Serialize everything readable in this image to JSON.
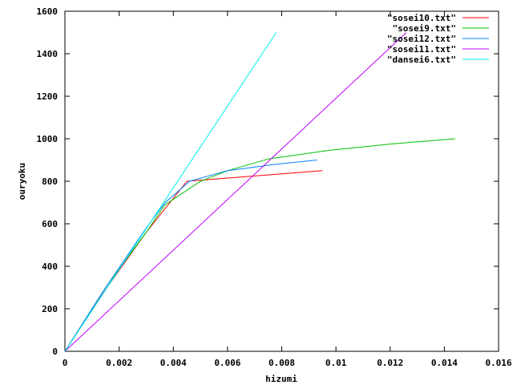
{
  "chart_data": {
    "type": "line",
    "title": "",
    "xlabel": "hizumi",
    "ylabel": "ouryoku",
    "xlim": [
      0,
      0.016
    ],
    "ylim": [
      0,
      1600
    ],
    "x_ticks": [
      0,
      0.002,
      0.004,
      0.006,
      0.008,
      0.01,
      0.012,
      0.014,
      0.016
    ],
    "x_tick_labels": [
      "0",
      "0.002",
      "0.004",
      "0.006",
      "0.008",
      "0.01",
      "0.012",
      "0.014",
      "0.016"
    ],
    "y_ticks": [
      0,
      200,
      400,
      600,
      800,
      1000,
      1200,
      1400,
      1600
    ],
    "y_tick_labels": [
      "0",
      "200",
      "400",
      "600",
      "800",
      "1000",
      "1200",
      "1400",
      "1600"
    ],
    "grid": false,
    "legend_position": "top-right",
    "series": [
      {
        "name": "\"sosei10.txt\"",
        "color": "#ff0000",
        "points": [
          [
            0,
            0
          ],
          [
            0.0015,
            290
          ],
          [
            0.003,
            560
          ],
          [
            0.0045,
            800
          ],
          [
            0.006,
            815
          ],
          [
            0.008,
            835
          ],
          [
            0.0095,
            850
          ]
        ]
      },
      {
        "name": "\"sosei9.txt\"",
        "color": "#00c000",
        "points": [
          [
            0,
            0
          ],
          [
            0.0015,
            300
          ],
          [
            0.003,
            560
          ],
          [
            0.0037,
            690
          ],
          [
            0.005,
            800
          ],
          [
            0.006,
            850
          ],
          [
            0.0075,
            905
          ],
          [
            0.0097,
            945
          ],
          [
            0.012,
            975
          ],
          [
            0.0144,
            1000
          ]
        ]
      },
      {
        "name": "\"sosei12.txt\"",
        "color": "#0080ff",
        "points": [
          [
            0,
            0
          ],
          [
            0.0015,
            300
          ],
          [
            0.003,
            580
          ],
          [
            0.0037,
            700
          ],
          [
            0.0046,
            800
          ],
          [
            0.006,
            850
          ],
          [
            0.0078,
            880
          ],
          [
            0.0093,
            900
          ]
        ]
      },
      {
        "name": "\"sosei11.txt\"",
        "color": "#c000ff",
        "points": [
          [
            0,
            0
          ],
          [
            0.0126,
            1500
          ]
        ]
      },
      {
        "name": "\"dansei6.txt\"",
        "color": "#00eeee",
        "points": [
          [
            0,
            0
          ],
          [
            0.0078,
            1500
          ]
        ]
      }
    ]
  }
}
